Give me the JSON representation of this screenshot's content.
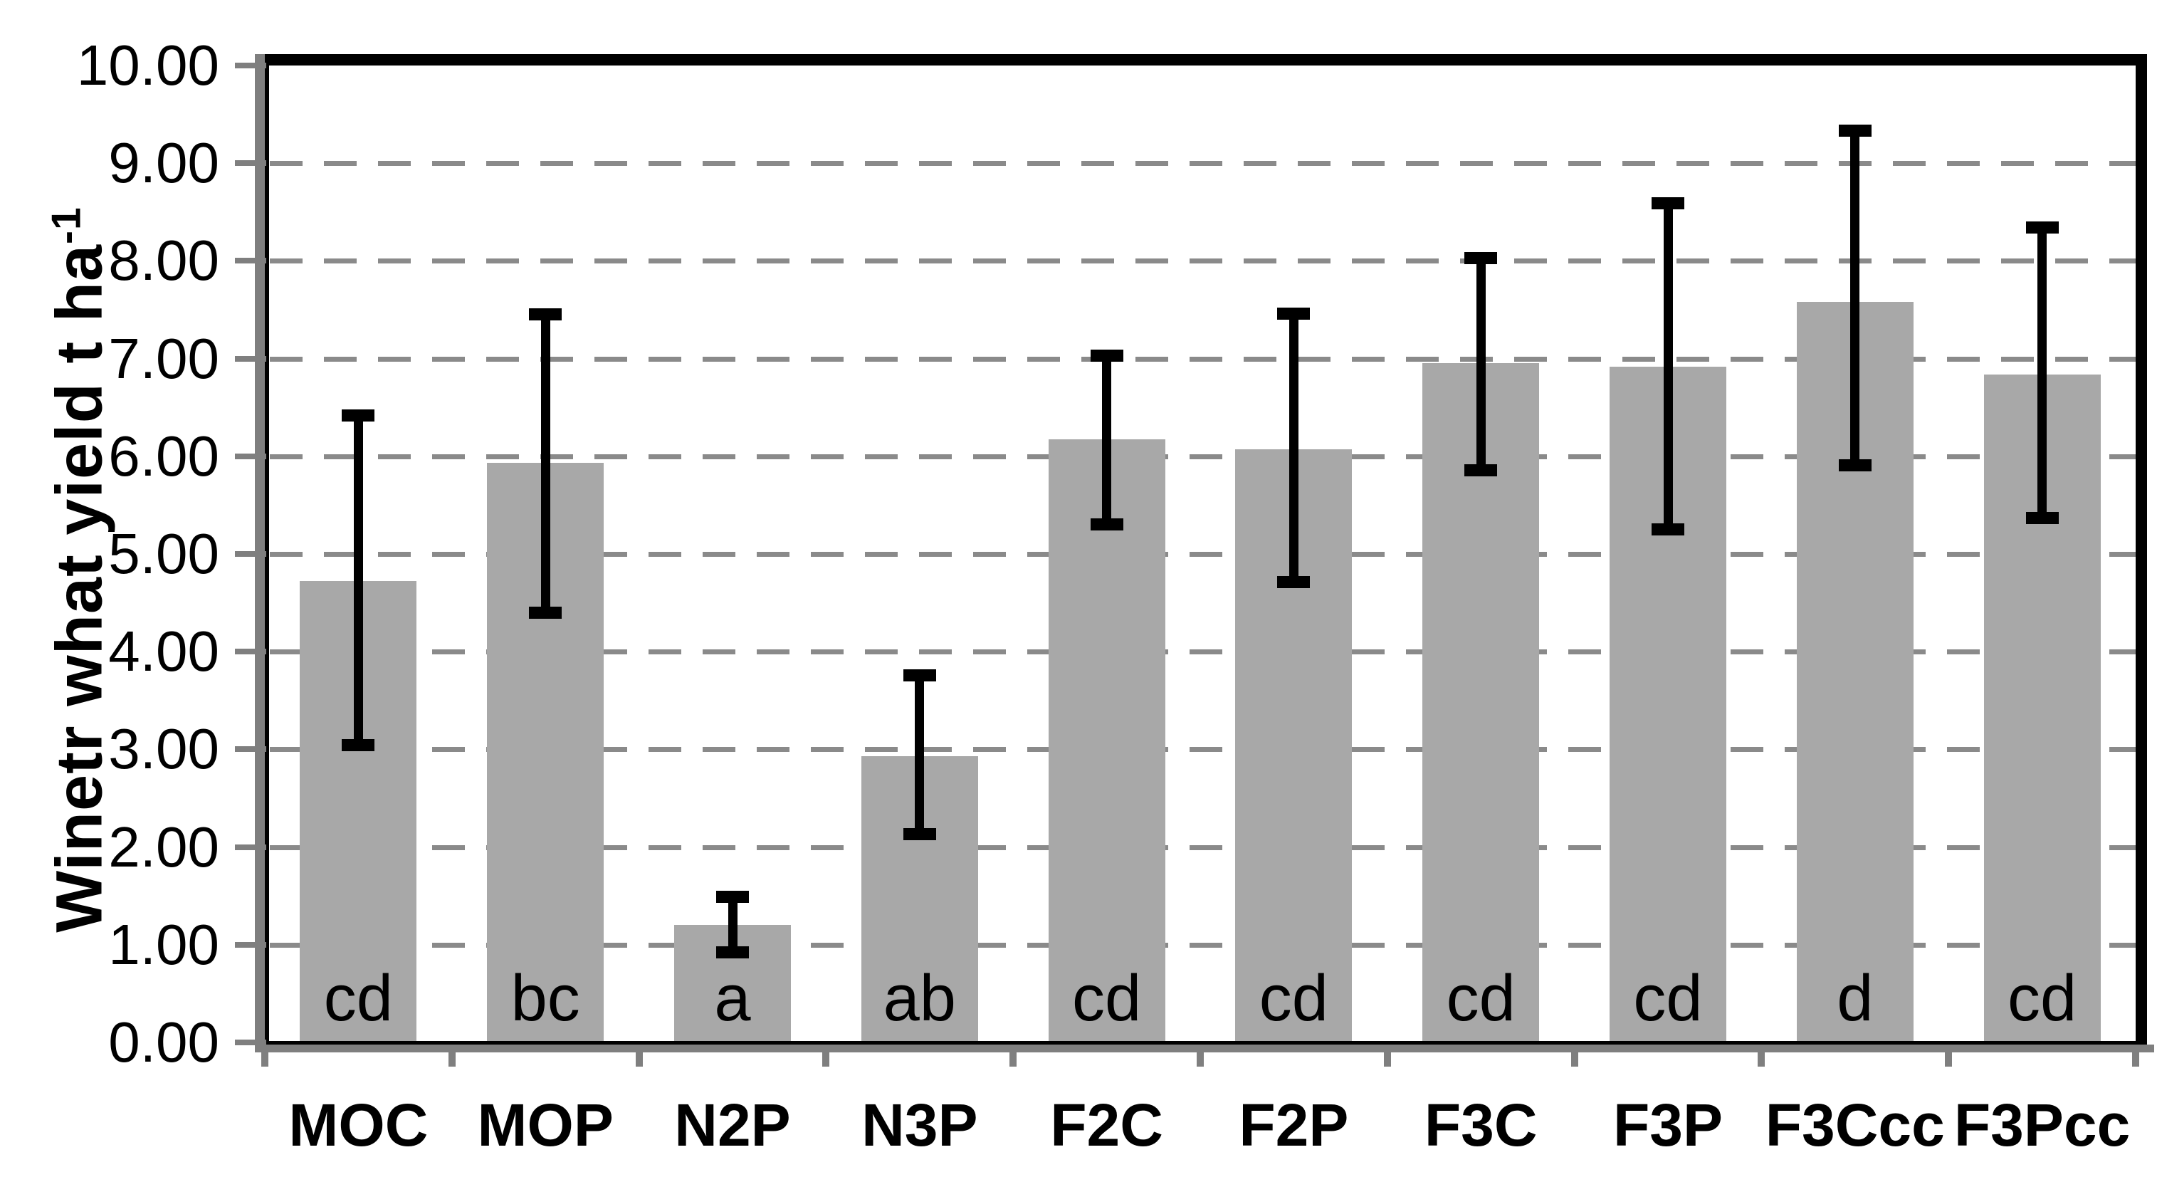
{
  "figure": {
    "background": "#ffffff",
    "description_visible_elements": "single grayscale vertical bar chart with black error bars, dashed horizontal gridlines, letters inside bar bases"
  },
  "chart_data": {
    "type": "bar",
    "title": "",
    "xlabel": "",
    "ylabel_main": "Winetr what yield t ha",
    "ylabel_superscript": "-1",
    "ylim": [
      0,
      10
    ],
    "ytick_step": 1.0,
    "ytick_labels": [
      "0.00",
      "1.00",
      "2.00",
      "3.00",
      "4.00",
      "5.00",
      "6.00",
      "7.00",
      "8.00",
      "9.00",
      "10.00"
    ],
    "grid": {
      "horizontal": true,
      "style": "dashed",
      "at_every": 1.0
    },
    "legend": "none",
    "categories": [
      "MOC",
      "MOP",
      "N2P",
      "N3P",
      "F2C",
      "F2P",
      "F3C",
      "F3P",
      "F3Ccc",
      "F3Pcc"
    ],
    "values": [
      4.72,
      5.93,
      1.2,
      2.93,
      6.17,
      6.07,
      6.95,
      6.92,
      7.58,
      6.84
    ],
    "error_bar_top": [
      6.42,
      7.45,
      1.49,
      3.76,
      7.03,
      7.46,
      8.03,
      8.59,
      9.33,
      8.34
    ],
    "error_bar_bottom": [
      3.04,
      4.4,
      0.92,
      2.13,
      5.3,
      4.71,
      5.86,
      5.25,
      5.91,
      5.37
    ],
    "significance_letters": [
      "cd",
      "bc",
      "a",
      "ab",
      "cd",
      "cd",
      "cd",
      "cd",
      "d",
      "cd"
    ],
    "colors": {
      "bar_fill": "#a8a8a8",
      "error_bar": "#000000",
      "gridline": "#8a8a8a",
      "axis_gray": "#7f7f7f",
      "plot_border": "#000000",
      "text": "#000000"
    }
  }
}
